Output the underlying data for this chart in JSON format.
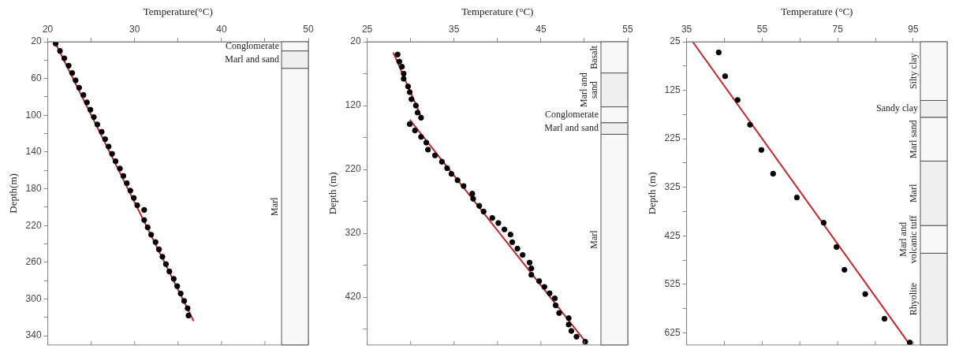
{
  "chart_data": [
    {
      "type": "scatter",
      "xlabel": "Temperature(°C)",
      "ylabel": "Depth(m)",
      "xlim": [
        20,
        50
      ],
      "ylim": [
        350,
        20
      ],
      "xticks": [
        20,
        {
          "value": 25,
          "label": null
        },
        30,
        {
          "value": 35,
          "label": null
        },
        40,
        {
          "value": 45,
          "label": null
        },
        50
      ],
      "yticks": [
        20,
        {
          "value": 40,
          "label": null
        },
        60,
        {
          "value": 80,
          "label": null
        },
        100,
        {
          "value": 120,
          "label": null
        },
        140,
        {
          "value": 160,
          "label": null
        },
        180,
        {
          "value": 200,
          "label": null
        },
        220,
        {
          "value": 240,
          "label": null
        },
        260,
        {
          "value": 280,
          "label": null
        },
        300,
        {
          "value": 320,
          "label": null
        },
        340
      ],
      "grid": false,
      "legend": false,
      "marker": "circle",
      "series": [
        {
          "color": "#000000",
          "x": [
            20.9,
            21.4,
            21.9,
            22.4,
            22.8,
            23.2,
            23.6,
            24.1,
            24.5,
            24.9,
            25.3,
            25.7,
            26.2,
            26.6,
            27.0,
            27.4,
            27.8,
            28.3,
            28.7,
            29.1,
            29.5,
            29.9,
            30.3,
            31.1,
            31.1,
            31.5,
            31.9,
            32.4,
            32.8,
            33.2,
            33.6,
            34.0,
            34.5,
            34.9,
            35.3,
            35.7,
            36.1,
            36.2
          ],
          "values": [
            22,
            30,
            38,
            46,
            54,
            62,
            70,
            78,
            86,
            94,
            102,
            110,
            118,
            126,
            134,
            142,
            150,
            158,
            166,
            174,
            182,
            190,
            198,
            203,
            214,
            222,
            230,
            238,
            246,
            254,
            262,
            270,
            278,
            286,
            294,
            302,
            310,
            318
          ]
        },
        {
          "type": "line",
          "color": "#c0282d",
          "line_style": "solid",
          "marker": "none",
          "x": [
            20.8,
            36.8
          ],
          "values": [
            20,
            324
          ]
        }
      ],
      "bands": [
        {
          "axis": "y",
          "from": 20,
          "to": 30,
          "label": "Conglomerate"
        },
        {
          "axis": "y",
          "from": 30,
          "to": 49,
          "label": "Marl and sand"
        },
        {
          "axis": "y",
          "from": 49,
          "to": 350,
          "label": "Marl"
        }
      ]
    },
    {
      "type": "scatter",
      "xlabel": "Temperature (°C)",
      "ylabel": "Depth (m)",
      "xlim": [
        25,
        55
      ],
      "ylim": [
        495,
        20
      ],
      "xticks": [
        25,
        {
          "value": 30,
          "label": null
        },
        35,
        {
          "value": 40,
          "label": null
        },
        45,
        {
          "value": 50,
          "label": null
        },
        55
      ],
      "yticks": [
        20,
        {
          "value": 70,
          "label": null
        },
        120,
        {
          "value": 170,
          "label": null
        },
        220,
        {
          "value": 270,
          "label": null
        },
        320,
        {
          "value": 370,
          "label": null
        },
        420,
        {
          "value": 470,
          "label": null
        }
      ],
      "grid": false,
      "legend": false,
      "marker": "circle",
      "series": [
        {
          "color": "#000000",
          "x": [
            28.5,
            28.7,
            29.0,
            29.2,
            29.2,
            29.7,
            29.9,
            30.1,
            30.6,
            30.8,
            31.2
          ],
          "values": [
            40,
            51,
            59,
            70,
            78,
            90,
            99,
            110,
            120,
            131,
            139
          ]
        },
        {
          "type": "line",
          "color": "#c0282d",
          "line_style": "solid",
          "marker": "none",
          "x": [
            28.0,
            31.3
          ],
          "values": [
            37,
            140
          ]
        },
        {
          "color": "#000000",
          "x": [
            29.9,
            30.5,
            31.2,
            31.8,
            32.0,
            32.8,
            33.6,
            34.2,
            34.7,
            35.4,
            36.1,
            37.1,
            37.2,
            37.9,
            38.4,
            39.4,
            40.1,
            40.8,
            41.5,
            41.7,
            42.3,
            42.9,
            43.7,
            43.9,
            43.9,
            44.8,
            45.4,
            46.0,
            46.6,
            46.7,
            47.1,
            48.2,
            48.2,
            48.5,
            49.1,
            50.1
          ],
          "values": [
            149,
            159,
            169,
            178,
            189,
            198,
            208,
            218,
            227,
            237,
            246,
            258,
            266,
            277,
            286,
            296,
            304,
            314,
            322,
            334,
            344,
            354,
            366,
            375,
            385,
            395,
            404,
            414,
            422,
            433,
            445,
            453,
            463,
            473,
            482,
            490
          ]
        },
        {
          "type": "line",
          "color": "#c0282d",
          "line_style": "solid",
          "marker": "none",
          "x": [
            29.9,
            50.2
          ],
          "values": [
            142,
            491
          ]
        }
      ],
      "bands": [
        {
          "axis": "y",
          "from": 20,
          "to": 69,
          "label": "Basalt"
        },
        {
          "axis": "y",
          "from": 69,
          "to": 122,
          "label": "Marl and sand"
        },
        {
          "axis": "y",
          "from": 122,
          "to": 147,
          "label": "Conglomerate"
        },
        {
          "axis": "y",
          "from": 147,
          "to": 165,
          "label": "Marl and sand"
        },
        {
          "axis": "y",
          "from": 165,
          "to": 495,
          "label": "Marl"
        }
      ]
    },
    {
      "type": "scatter",
      "xlabel": "Temperature (°C)",
      "ylabel": "Depth (m)",
      "xlim": [
        35,
        104
      ],
      "ylim": [
        650,
        25
      ],
      "xticks": [
        35,
        {
          "value": 45,
          "label": null
        },
        55,
        {
          "value": 65,
          "label": null
        },
        75,
        {
          "value": 85,
          "label": null
        },
        95
      ],
      "yticks": [
        25,
        {
          "value": 75,
          "label": null
        },
        125,
        {
          "value": 175,
          "label": null
        },
        225,
        {
          "value": 275,
          "label": null
        },
        325,
        {
          "value": 375,
          "label": null
        },
        425,
        {
          "value": 475,
          "label": null
        },
        525,
        {
          "value": 575,
          "label": null
        },
        625
      ],
      "grid": false,
      "legend": false,
      "marker": "circle",
      "series": [
        {
          "color": "#000000",
          "x": [
            43.5,
            45.2,
            48.5,
            51.8,
            54.8,
            57.9,
            64.2,
            71.3,
            74.7,
            76.8,
            82.3,
            87.4,
            94.1
          ],
          "values": [
            47,
            96,
            145,
            196,
            248,
            297,
            346,
            398,
            448,
            495,
            545,
            596,
            645
          ]
        },
        {
          "type": "line",
          "color": "#c0282d",
          "line_style": "solid",
          "marker": "none",
          "x": [
            36.6,
            93.8
          ],
          "values": [
            25,
            646
          ]
        }
      ],
      "bands": [
        {
          "axis": "y",
          "from": 25,
          "to": 146,
          "label": "Silty clay"
        },
        {
          "axis": "y",
          "from": 146,
          "to": 181,
          "label": "Sandy clay"
        },
        {
          "axis": "y",
          "from": 181,
          "to": 271,
          "label": "Marl sand"
        },
        {
          "axis": "y",
          "from": 271,
          "to": 404,
          "label": "Marl"
        },
        {
          "axis": "y",
          "from": 404,
          "to": 461,
          "label": "Marl and volcanic tuff"
        },
        {
          "axis": "y",
          "from": 461,
          "to": 650,
          "label": "Rhyolite"
        }
      ]
    }
  ]
}
